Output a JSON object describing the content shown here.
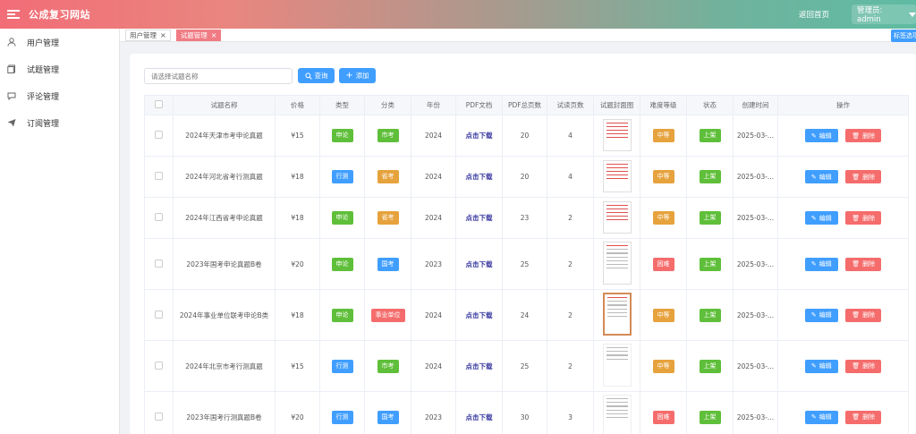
{
  "header": {
    "site_title": "公成复习网站",
    "home_link": "返回首页",
    "user_label": "管理员: admin"
  },
  "sidebar": {
    "items": [
      {
        "label": "用户管理",
        "icon": "user-icon"
      },
      {
        "label": "试题管理",
        "icon": "document-icon"
      },
      {
        "label": "评论管理",
        "icon": "comment-icon"
      },
      {
        "label": "订阅管理",
        "icon": "send-icon"
      }
    ]
  },
  "tabs": {
    "items": [
      {
        "label": "用户管理",
        "active": false
      },
      {
        "label": "试题管理",
        "active": true
      }
    ],
    "close_tabs_label": "标签选项"
  },
  "toolbar": {
    "search_placeholder": "请选择试题名称",
    "query_label": "查询",
    "add_label": "添加"
  },
  "table": {
    "columns": [
      "试题名称",
      "价格",
      "类型",
      "分类",
      "年份",
      "PDF文档",
      "PDF总页数",
      "试读页数",
      "试题封面图",
      "难度等级",
      "状态",
      "创建时间",
      "操作"
    ],
    "rows": [
      {
        "name": "2024年天津市考申论真题",
        "price": "¥15",
        "type": "申论",
        "category": "市考",
        "year": "2024",
        "pdf": "点击下载",
        "pages": "20",
        "trial": "4",
        "difficulty": "中等",
        "status": "上架",
        "created": "2025-03-...",
        "edit": "编辑",
        "delete": "删除"
      },
      {
        "name": "2024年河北省考行测真题",
        "price": "¥18",
        "type": "行测",
        "category": "省考",
        "year": "2024",
        "pdf": "点击下载",
        "pages": "20",
        "trial": "4",
        "difficulty": "中等",
        "status": "上架",
        "created": "2025-03-...",
        "edit": "编辑",
        "delete": "删除"
      },
      {
        "name": "2024年江西省考申论真题",
        "price": "¥18",
        "type": "申论",
        "category": "省考",
        "year": "2024",
        "pdf": "点击下载",
        "pages": "23",
        "trial": "2",
        "difficulty": "中等",
        "status": "上架",
        "created": "2025-03-...",
        "edit": "编辑",
        "delete": "删除"
      },
      {
        "name": "2023年国考申论真题B卷",
        "price": "¥20",
        "type": "申论",
        "category": "国考",
        "year": "2023",
        "pdf": "点击下载",
        "pages": "25",
        "trial": "2",
        "difficulty": "困难",
        "status": "上架",
        "created": "2025-03-...",
        "edit": "编辑",
        "delete": "删除"
      },
      {
        "name": "2024年事业单位联考申论B类",
        "price": "¥18",
        "type": "申论",
        "category": "事业单位",
        "year": "2024",
        "pdf": "点击下载",
        "pages": "24",
        "trial": "2",
        "difficulty": "中等",
        "status": "上架",
        "created": "2025-03-...",
        "edit": "编辑",
        "delete": "删除"
      },
      {
        "name": "2024年北京市考行测真题",
        "price": "¥15",
        "type": "行测",
        "category": "市考",
        "year": "2024",
        "pdf": "点击下载",
        "pages": "25",
        "trial": "2",
        "difficulty": "中等",
        "status": "上架",
        "created": "2025-03-...",
        "edit": "编辑",
        "delete": "删除"
      },
      {
        "name": "2023年国考行测真题B卷",
        "price": "¥20",
        "type": "行测",
        "category": "国考",
        "year": "2023",
        "pdf": "点击下载",
        "pages": "30",
        "trial": "3",
        "difficulty": "困难",
        "status": "上架",
        "created": "2025-03-...",
        "edit": "编辑",
        "delete": "删除"
      }
    ]
  },
  "colors": {
    "primary": "#409eff",
    "success": "#5fbf3a",
    "warning": "#e6a23c",
    "danger": "#f56c6c",
    "header_gradient_start": "#f26d77",
    "header_gradient_end": "#5fbba3"
  }
}
